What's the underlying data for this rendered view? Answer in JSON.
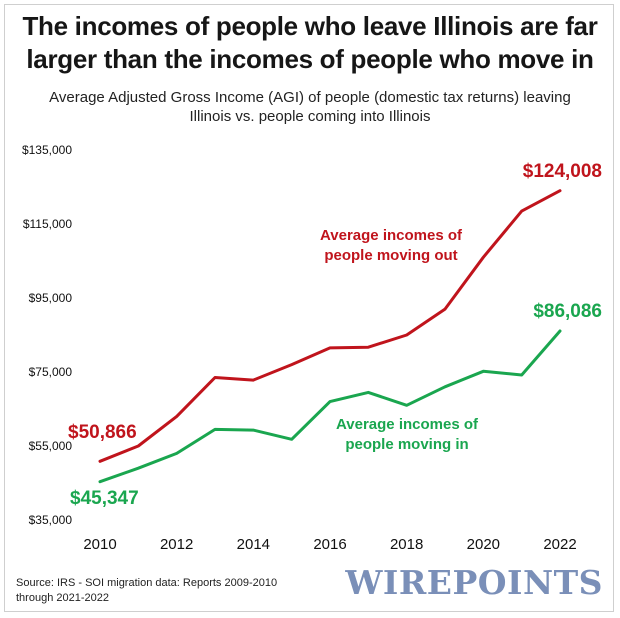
{
  "title": {
    "line1": "The incomes of people who leave Illinois are far",
    "line2": "larger than the incomes of people who move in"
  },
  "subtitle": {
    "line1": "Average Adjusted Gross Income (AGI) of people (domestic tax returns) leaving",
    "line2": "Illinois vs. people coming into Illinois"
  },
  "source": {
    "line1": "Source: IRS - SOI migration data: Reports 2009-2010",
    "line2": "through 2021-2022"
  },
  "brand": "WIREPOINTS",
  "chart_data": {
    "type": "line",
    "x": [
      2010,
      2011,
      2012,
      2013,
      2014,
      2015,
      2016,
      2017,
      2018,
      2019,
      2020,
      2021,
      2022
    ],
    "xticks": [
      2010,
      2012,
      2014,
      2016,
      2018,
      2020,
      2022
    ],
    "xtick_labels": [
      "2010",
      "2012",
      "2014",
      "2016",
      "2018",
      "2020",
      "2022"
    ],
    "ylim": [
      35000,
      135000
    ],
    "yticks": [
      35000,
      55000,
      75000,
      95000,
      115000,
      135000
    ],
    "ytick_labels": [
      "$35,000",
      "$55,000",
      "$75,000",
      "$95,000",
      "$115,000",
      "$135,000"
    ],
    "grid": false,
    "series": [
      {
        "name": "Average incomes of people moving out",
        "label_lines": [
          "Average incomes of",
          "people moving out"
        ],
        "color": "#c0141c",
        "values": [
          50866,
          55000,
          63000,
          73500,
          72800,
          77000,
          81500,
          81700,
          85000,
          92000,
          106000,
          118500,
          124008
        ],
        "start_label": "$50,866",
        "end_label": "$124,008"
      },
      {
        "name": "Average incomes of people moving in",
        "label_lines": [
          "Average incomes of",
          "people moving in"
        ],
        "color": "#1aa64f",
        "values": [
          45347,
          49000,
          53000,
          59500,
          59300,
          56800,
          67000,
          69500,
          66000,
          71000,
          75200,
          74200,
          86086
        ],
        "start_label": "$45,347",
        "end_label": "$86,086"
      }
    ]
  }
}
